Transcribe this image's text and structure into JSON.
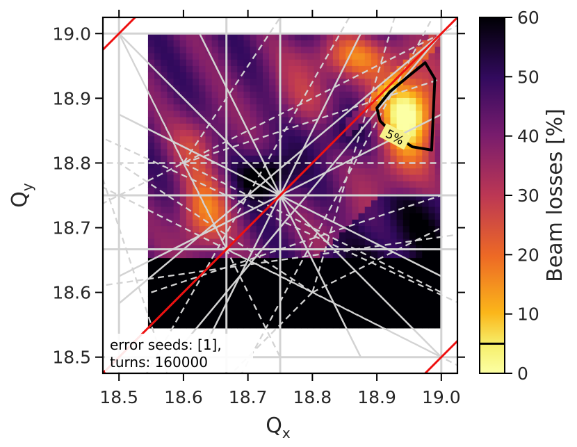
{
  "chart_data": {
    "type": "heatmap",
    "title": "",
    "xlabel": "Q",
    "xlabel_sub": "x",
    "ylabel": "Q",
    "ylabel_sub": "y",
    "xlim": [
      18.475,
      19.025
    ],
    "ylim": [
      18.475,
      19.025
    ],
    "x_ticks": [
      "18.5",
      "18.6",
      "18.7",
      "18.8",
      "18.9",
      "19.0"
    ],
    "y_ticks": [
      "18.5",
      "18.6",
      "18.7",
      "18.8",
      "18.9",
      "19.0"
    ],
    "heatmap_extent": {
      "x": [
        18.545,
        19.0
      ],
      "y": [
        18.545,
        19.0
      ]
    },
    "colorbar": {
      "label": "Beam losses [%]",
      "colormap": "inferno_r",
      "range": [
        0,
        60
      ],
      "ticks": [
        "0",
        "10",
        "20",
        "30",
        "40",
        "50",
        "60"
      ],
      "contour_level": 5
    },
    "contour": {
      "label": "5%",
      "level": 5,
      "points": [
        [
          18.975,
          18.955
        ],
        [
          18.99,
          18.93
        ],
        [
          18.985,
          18.82
        ],
        [
          18.955,
          18.825
        ],
        [
          18.925,
          18.845
        ],
        [
          18.905,
          18.865
        ],
        [
          18.9,
          18.885
        ],
        [
          18.92,
          18.91
        ],
        [
          18.95,
          18.935
        ]
      ]
    },
    "annotation": [
      "error seeds: [1],",
      "turns: 160000"
    ],
    "grid": false,
    "resonance_lines": {
      "main_diagonal_color": "#ee1111",
      "line_color": "#d3d3d3"
    },
    "colors": {
      "colormap_stops": [
        "#fcffa4",
        "#f98e09",
        "#bc3754",
        "#57106e",
        "#000004"
      ]
    }
  }
}
